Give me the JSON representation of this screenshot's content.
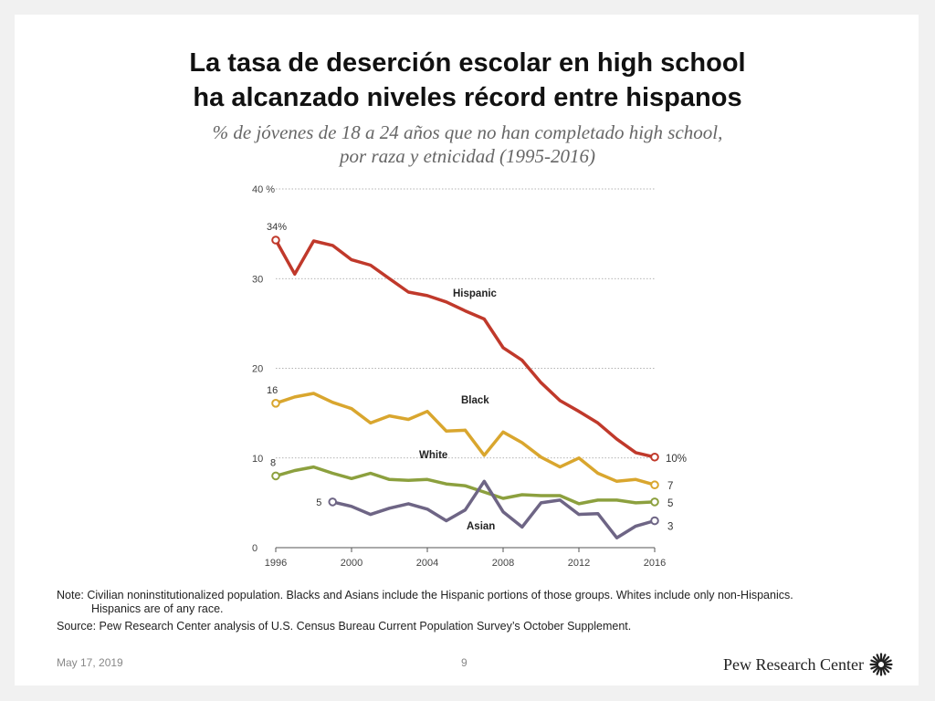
{
  "title": {
    "line1": "La tasa de deserción escolar en high school",
    "line2": "ha alcanzado niveles récord entre hispanos"
  },
  "subtitle": {
    "line1": "% de jóvenes de 18 a 24 años que no han completado high school,",
    "line2": "por raza y etnicidad (1995-2016)"
  },
  "chart_data": {
    "type": "line",
    "title": "La tasa de deserción escolar en high school ha alcanzado niveles récord entre hispanos",
    "xlabel": "",
    "ylabel": "%",
    "xlim": [
      1996,
      2016
    ],
    "ylim": [
      0,
      40
    ],
    "x_ticks": [
      {
        "value": 1996,
        "label": "1996"
      },
      {
        "value": 2000,
        "label": "2000"
      },
      {
        "value": 2004,
        "label": "2004"
      },
      {
        "value": 2008,
        "label": "2008"
      },
      {
        "value": 2012,
        "label": "2012"
      },
      {
        "value": 2016,
        "label": "2016"
      }
    ],
    "y_ticks": [
      {
        "value": 0,
        "label": "0"
      },
      {
        "value": 10,
        "label": "10"
      },
      {
        "value": 20,
        "label": "20"
      },
      {
        "value": 30,
        "label": "30"
      },
      {
        "value": 40,
        "label": "40 %"
      }
    ],
    "grid": true,
    "series": [
      {
        "name": "Hispanic",
        "color": "#c0392b",
        "x": [
          1996,
          1997,
          1998,
          1999,
          2000,
          2001,
          2002,
          2003,
          2004,
          2005,
          2006,
          2007,
          2008,
          2009,
          2010,
          2011,
          2012,
          2013,
          2014,
          2015,
          2016
        ],
        "values": [
          34.3,
          30.5,
          34.2,
          33.7,
          32.1,
          31.5,
          30.0,
          28.5,
          28.1,
          27.4,
          26.4,
          25.5,
          22.3,
          20.9,
          18.4,
          16.4,
          15.2,
          13.9,
          12.1,
          10.6,
          10.1
        ],
        "start_label": "34%",
        "end_label": "10%"
      },
      {
        "name": "Black",
        "color": "#d9a62e",
        "x": [
          1996,
          1997,
          1998,
          1999,
          2000,
          2001,
          2002,
          2003,
          2004,
          2005,
          2006,
          2007,
          2008,
          2009,
          2010,
          2011,
          2012,
          2013,
          2014,
          2015,
          2016
        ],
        "values": [
          16.1,
          16.8,
          17.2,
          16.2,
          15.5,
          13.9,
          14.7,
          14.3,
          15.2,
          13.0,
          13.1,
          10.3,
          12.9,
          11.7,
          10.1,
          9.0,
          10.0,
          8.3,
          7.4,
          7.6,
          7.0
        ],
        "start_label": "16",
        "end_label": "7"
      },
      {
        "name": "White",
        "color": "#8ca03e",
        "x": [
          1996,
          1997,
          1998,
          1999,
          2000,
          2001,
          2002,
          2003,
          2004,
          2005,
          2006,
          2007,
          2008,
          2009,
          2010,
          2011,
          2012,
          2013,
          2014,
          2015,
          2016
        ],
        "values": [
          8.0,
          8.6,
          9.0,
          8.3,
          7.7,
          8.3,
          7.6,
          7.5,
          7.6,
          7.1,
          6.9,
          6.2,
          5.5,
          5.9,
          5.8,
          5.8,
          4.9,
          5.3,
          5.3,
          5.0,
          5.1
        ],
        "start_label": "8",
        "end_label": "5"
      },
      {
        "name": "Asian",
        "color": "#6e6585",
        "x": [
          1999,
          2000,
          2001,
          2002,
          2003,
          2004,
          2005,
          2006,
          2007,
          2008,
          2009,
          2010,
          2011,
          2012,
          2013,
          2014,
          2015,
          2016
        ],
        "values": [
          5.1,
          4.6,
          3.7,
          4.4,
          4.9,
          4.3,
          3.0,
          4.2,
          7.4,
          4.0,
          2.3,
          5.0,
          5.3,
          3.7,
          3.8,
          1.1,
          2.4,
          3.0
        ],
        "start_label": "5",
        "end_label": "3"
      }
    ]
  },
  "notes": {
    "note_line1": "Note: Civilian noninstitutionalized population. Blacks and Asians include the Hispanic portions of those groups. Whites include only non-Hispanics.",
    "note_line2": "Hispanics are of any race.",
    "source": "Source: Pew Research Center analysis of U.S. Census Bureau Current Population Survey’s October Supplement."
  },
  "footer": {
    "date": "May 17, 2019",
    "page_number": "9",
    "logo_text": "Pew Research Center",
    "logo_icon": "pew-sunburst-icon"
  }
}
